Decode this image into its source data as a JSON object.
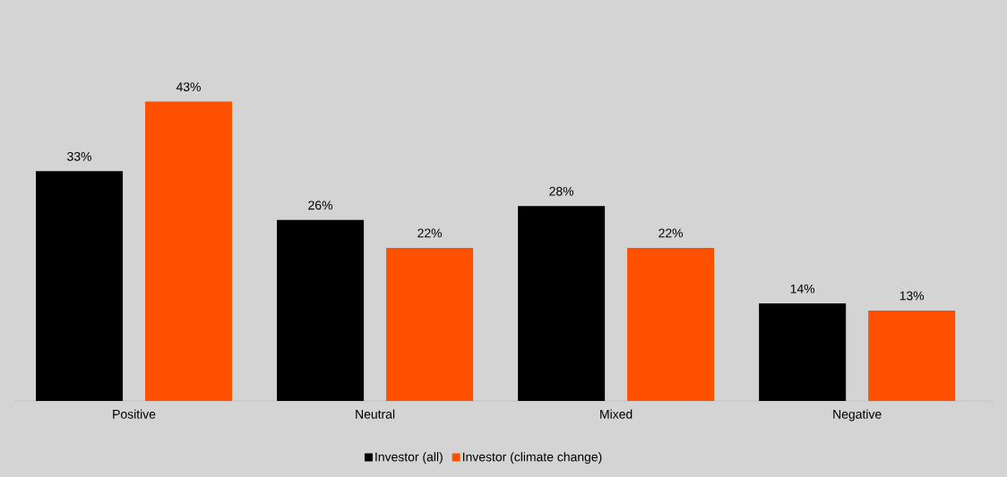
{
  "chart_data": {
    "type": "bar",
    "categories": [
      "Positive",
      "Neutral",
      "Mixed",
      "Negative"
    ],
    "series": [
      {
        "name": "Investor (all)",
        "color": "#000000",
        "values": [
          33,
          26,
          28,
          14
        ],
        "value_labels": [
          "33%",
          "26%",
          "28%",
          "14%"
        ]
      },
      {
        "name": "Investor (climate change)",
        "color": "#ff5000",
        "values": [
          43,
          22,
          22,
          13
        ],
        "value_labels": [
          "43%",
          "22%",
          "22%",
          "13%"
        ]
      }
    ],
    "tick_labels": "x",
    "legend": "bottom"
  }
}
